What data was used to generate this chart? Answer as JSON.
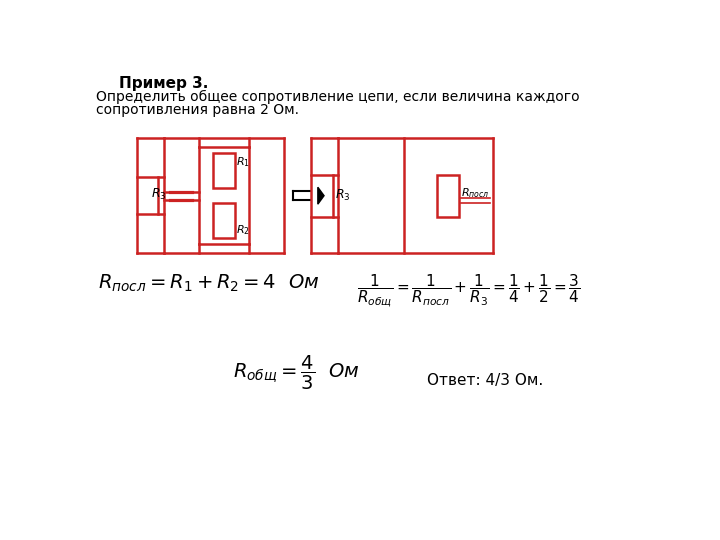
{
  "title": "Пример 3.",
  "subtitle_line1": "Определить общее сопротивление цепи, если величина каждого",
  "subtitle_line2": "сопротивления равна 2 Ом.",
  "bg_color": "#ffffff",
  "circuit_color": "#cc2222",
  "text_color": "#000000",
  "answer_text": "Ответ: 4/3 Ом.",
  "lw": 1.8
}
